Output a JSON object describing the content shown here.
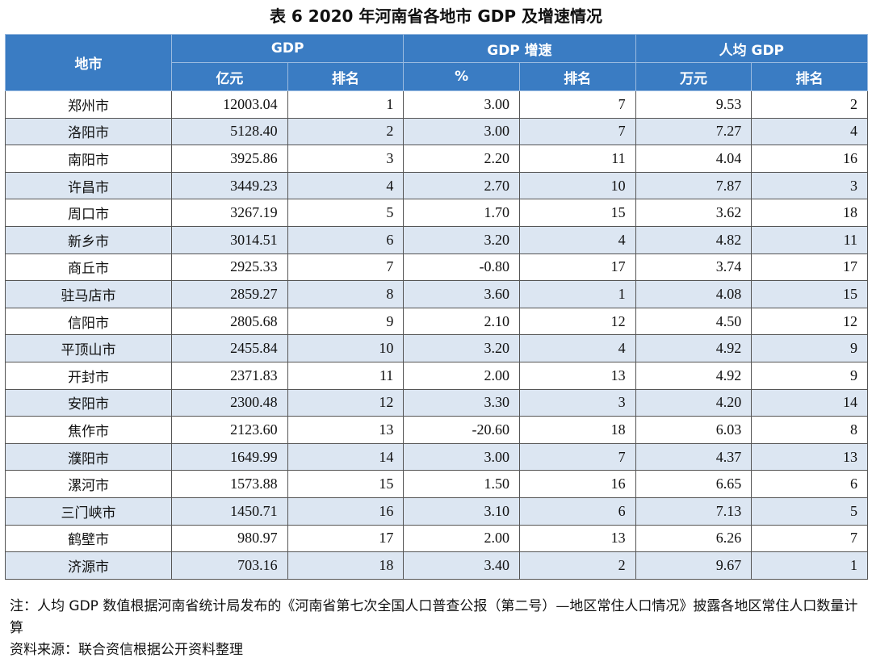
{
  "header": {
    "title": "表 6   2020 年河南省各地市 GDP 及增速情况"
  },
  "table": {
    "group_headers": [
      "地市",
      "GDP",
      "GDP 增速",
      "人均 GDP"
    ],
    "sub_headers": [
      "亿元",
      "排名",
      "%",
      "排名",
      "万元",
      "排名"
    ],
    "rows": [
      [
        "郑州市",
        "12003.04",
        "1",
        "3.00",
        "7",
        "9.53",
        "2"
      ],
      [
        "洛阳市",
        "5128.40",
        "2",
        "3.00",
        "7",
        "7.27",
        "4"
      ],
      [
        "南阳市",
        "3925.86",
        "3",
        "2.20",
        "11",
        "4.04",
        "16"
      ],
      [
        "许昌市",
        "3449.23",
        "4",
        "2.70",
        "10",
        "7.87",
        "3"
      ],
      [
        "周口市",
        "3267.19",
        "5",
        "1.70",
        "15",
        "3.62",
        "18"
      ],
      [
        "新乡市",
        "3014.51",
        "6",
        "3.20",
        "4",
        "4.82",
        "11"
      ],
      [
        "商丘市",
        "2925.33",
        "7",
        "-0.80",
        "17",
        "3.74",
        "17"
      ],
      [
        "驻马店市",
        "2859.27",
        "8",
        "3.60",
        "1",
        "4.08",
        "15"
      ],
      [
        "信阳市",
        "2805.68",
        "9",
        "2.10",
        "12",
        "4.50",
        "12"
      ],
      [
        "平顶山市",
        "2455.84",
        "10",
        "3.20",
        "4",
        "4.92",
        "9"
      ],
      [
        "开封市",
        "2371.83",
        "11",
        "2.00",
        "13",
        "4.92",
        "9"
      ],
      [
        "安阳市",
        "2300.48",
        "12",
        "3.30",
        "3",
        "4.20",
        "14"
      ],
      [
        "焦作市",
        "2123.60",
        "13",
        "-20.60",
        "18",
        "6.03",
        "8"
      ],
      [
        "濮阳市",
        "1649.99",
        "14",
        "3.00",
        "7",
        "4.37",
        "13"
      ],
      [
        "漯河市",
        "1573.88",
        "15",
        "1.50",
        "16",
        "6.65",
        "6"
      ],
      [
        "三门峡市",
        "1450.71",
        "16",
        "3.10",
        "6",
        "7.13",
        "5"
      ],
      [
        "鹤壁市",
        "980.97",
        "17",
        "2.00",
        "13",
        "6.26",
        "7"
      ],
      [
        "济源市",
        "703.16",
        "18",
        "3.40",
        "2",
        "9.67",
        "1"
      ]
    ]
  },
  "notes": [
    "注：人均 GDP 数值根据河南省统计局发布的《河南省第七次全国人口普查公报（第二号）—地区常住人口情况》披露各地区常住人口数量计算",
    "资料来源：联合资信根据公开资料整理"
  ]
}
